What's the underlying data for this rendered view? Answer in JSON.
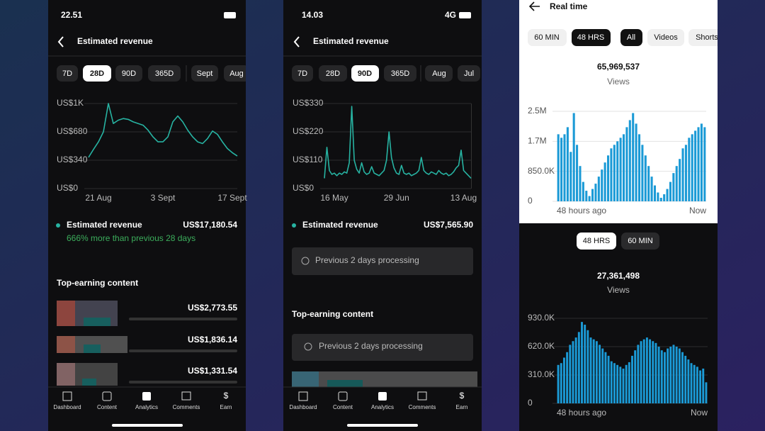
{
  "panels": [
    {
      "status_time": "22.51",
      "title": "Estimated revenue",
      "tabs": [
        "7D",
        "28D",
        "90D",
        "365D",
        "Sept",
        "Aug"
      ],
      "summary_label": "Estimated revenue",
      "summary_value": "US$17,180.54",
      "summary_note": "666% more than previous 28 days",
      "section_title": "Top-earning content",
      "items": [
        "US$2,773.55",
        "US$1,836.14",
        "US$1,331.54"
      ]
    },
    {
      "status_time": "14.03",
      "network": "4G",
      "title": "Estimated revenue",
      "tabs": [
        "7D",
        "28D",
        "90D",
        "365D",
        "Aug",
        "Jul"
      ],
      "summary_label": "Estimated revenue",
      "summary_value": "US$7,565.90",
      "summary_note": "Previous 2 days processing",
      "section_title": "Top-earning content",
      "section_note": "Previous 2 days processing"
    },
    {
      "title": "Real time",
      "time_tabs": [
        "60 MIN",
        "48 HRS"
      ],
      "type_tabs": [
        "All",
        "Videos",
        "Shorts"
      ],
      "total": "65,969,537",
      "total_label": "Views",
      "lower_tabs": [
        "48 HRS",
        "60 MIN"
      ],
      "lower_total": "27,361,498",
      "lower_total_label": "Views"
    }
  ],
  "nav": [
    "Dashboard",
    "Content",
    "Analytics",
    "Comments",
    "Earn"
  ],
  "chart_data": [
    {
      "type": "line",
      "color": "#27b3a2",
      "grid": true,
      "categories": [
        null,
        null,
        "21 Aug",
        null,
        null,
        null,
        null,
        null,
        null,
        null,
        null,
        null,
        null,
        null,
        null,
        "3 Sept",
        null,
        null,
        null,
        null,
        null,
        null,
        null,
        null,
        null,
        null,
        null,
        null,
        null,
        "17 Sept",
        null
      ],
      "values": [
        374,
        470,
        560,
        680,
        1020,
        780,
        820,
        840,
        830,
        800,
        780,
        760,
        700,
        620,
        560,
        560,
        620,
        800,
        870,
        800,
        700,
        620,
        560,
        540,
        600,
        690,
        650,
        560,
        480,
        430,
        390
      ],
      "ylim": [
        0,
        1020
      ],
      "yticks": [
        {
          "value": 0,
          "label": "US$0"
        },
        {
          "value": 340,
          "label": "US$340"
        },
        {
          "value": 680,
          "label": "US$680"
        },
        {
          "value": 1020,
          "label": "US$1K"
        }
      ]
    },
    {
      "type": "line",
      "color": "#27b3a2",
      "grid": true,
      "categories": [
        null,
        null,
        null,
        null,
        "16 May",
        null,
        null,
        null,
        null,
        null,
        null,
        null,
        null,
        null,
        null,
        null,
        null,
        null,
        null,
        null,
        null,
        null,
        null,
        null,
        null,
        null,
        null,
        null,
        null,
        "29 Jun",
        null,
        null,
        null,
        null,
        null,
        null,
        null,
        null,
        null,
        null,
        null,
        null,
        null,
        null,
        null,
        null,
        null,
        null,
        null,
        null,
        null,
        null,
        null,
        null,
        null,
        null,
        "13 Aug",
        null,
        null,
        null
      ],
      "values": [
        40,
        160,
        70,
        55,
        60,
        50,
        60,
        55,
        65,
        60,
        100,
        319,
        110,
        75,
        60,
        100,
        65,
        55,
        60,
        85,
        60,
        55,
        50,
        60,
        70,
        110,
        220,
        120,
        80,
        60,
        55,
        90,
        60,
        55,
        60,
        50,
        55,
        60,
        70,
        121,
        70,
        60,
        55,
        65,
        60,
        55,
        70,
        60,
        55,
        60,
        50,
        55,
        65,
        80,
        90,
        149,
        70,
        60,
        50,
        40
      ],
      "ylim": [
        0,
        330
      ],
      "yticks": [
        {
          "value": 0,
          "label": "US$0"
        },
        {
          "value": 110,
          "label": "US$110"
        },
        {
          "value": 220,
          "label": "US$220"
        },
        {
          "value": 330,
          "label": "US$330"
        }
      ]
    },
    {
      "type": "bar",
      "color": "#1b9ad6",
      "grid": true,
      "categories": [
        "48 hours ago",
        null,
        null,
        null,
        null,
        null,
        null,
        null,
        null,
        null,
        null,
        null,
        null,
        null,
        null,
        null,
        null,
        null,
        null,
        null,
        null,
        null,
        null,
        null,
        null,
        null,
        null,
        null,
        null,
        null,
        null,
        null,
        null,
        null,
        null,
        null,
        null,
        null,
        null,
        null,
        null,
        null,
        null,
        null,
        null,
        null,
        null,
        "Now"
      ],
      "values": [
        1900000,
        1800000,
        1900000,
        2100000,
        1400000,
        2500000,
        1600000,
        1000000,
        550000,
        300000,
        150000,
        350000,
        500000,
        700000,
        900000,
        1100000,
        1300000,
        1500000,
        1600000,
        1700000,
        1800000,
        1900000,
        2100000,
        2300000,
        2500000,
        2200000,
        1900000,
        1600000,
        1300000,
        1000000,
        700000,
        450000,
        250000,
        100000,
        200000,
        350000,
        550000,
        800000,
        1000000,
        1200000,
        1500000,
        1600000,
        1800000,
        1900000,
        2000000,
        2100000,
        2200000,
        2100000
      ],
      "ylim": [
        0,
        2550000
      ],
      "yticks": [
        0,
        {
          "value": 850000,
          "label": "850.0K"
        },
        {
          "value": 1700000,
          "label": "1.7M"
        },
        {
          "value": 2550000,
          "label": "2.5M"
        }
      ]
    },
    {
      "type": "bar",
      "color": "#1b9ad6",
      "grid": true,
      "categories": [
        "48 hours ago",
        null,
        null,
        null,
        null,
        null,
        null,
        null,
        null,
        null,
        null,
        null,
        null,
        null,
        null,
        null,
        null,
        null,
        null,
        null,
        null,
        null,
        null,
        null,
        null,
        null,
        null,
        null,
        null,
        null,
        null,
        null,
        null,
        null,
        null,
        null,
        null,
        null,
        null,
        null,
        null,
        null,
        null,
        null,
        null,
        null,
        null,
        null,
        null,
        null,
        "Now"
      ],
      "values": [
        420000,
        440000,
        500000,
        560000,
        640000,
        680000,
        720000,
        780000,
        890000,
        860000,
        800000,
        720000,
        700000,
        680000,
        640000,
        600000,
        560000,
        520000,
        460000,
        440000,
        420000,
        400000,
        380000,
        420000,
        450000,
        520000,
        580000,
        640000,
        680000,
        700000,
        720000,
        700000,
        680000,
        660000,
        620000,
        580000,
        560000,
        600000,
        620000,
        640000,
        620000,
        600000,
        560000,
        520000,
        480000,
        440000,
        420000,
        400000,
        360000,
        380000,
        230000
      ],
      "ylim": [
        0,
        930000
      ],
      "yticks": [
        0,
        {
          "value": 310000,
          "label": "310.0K"
        },
        {
          "value": 620000,
          "label": "620.0K"
        },
        {
          "value": 930000,
          "label": "930.0K"
        }
      ]
    }
  ]
}
